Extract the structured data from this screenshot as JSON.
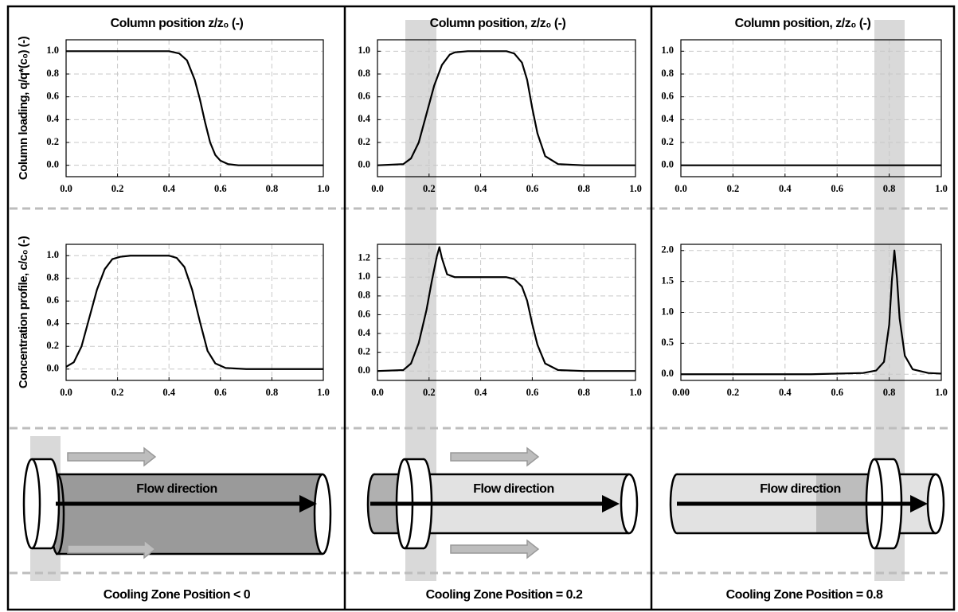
{
  "chart_data": [
    {
      "type": "line",
      "title": "Column position z/z₀ (-)",
      "ylabel": "Column loading, q/q*(c₀) (-)",
      "x": [
        0,
        0.1,
        0.2,
        0.3,
        0.4,
        0.44,
        0.47,
        0.5,
        0.52,
        0.54,
        0.56,
        0.58,
        0.6,
        0.63,
        0.67,
        0.7,
        0.8,
        0.9,
        1.0
      ],
      "series": [
        {
          "color": "#000000",
          "values": [
            1,
            1,
            1,
            1,
            1,
            0.98,
            0.92,
            0.75,
            0.58,
            0.38,
            0.2,
            0.09,
            0.04,
            0.01,
            0,
            0,
            0,
            0,
            0
          ]
        }
      ],
      "xlim": [
        0,
        1
      ],
      "ylim": [
        -0.1,
        1.1
      ],
      "xticks": [
        {
          "value": 0,
          "label": "0.0"
        },
        0.2,
        0.4,
        0.6,
        0.8,
        {
          "value": 1,
          "label": "1.0"
        }
      ],
      "yticks": [
        {
          "value": 0,
          "label": "0.0"
        },
        0.2,
        0.4,
        0.6,
        0.8,
        {
          "value": 1,
          "label": "1.0"
        }
      ],
      "grid": true
    },
    {
      "type": "line",
      "title": "Column position, z/z₀ (-)",
      "x": [
        0,
        0.1,
        0.13,
        0.16,
        0.19,
        0.22,
        0.25,
        0.28,
        0.3,
        0.35,
        0.4,
        0.5,
        0.53,
        0.56,
        0.58,
        0.6,
        0.62,
        0.65,
        0.7,
        0.8,
        0.9,
        1.0
      ],
      "series": [
        {
          "color": "#000000",
          "values": [
            0,
            0.01,
            0.06,
            0.2,
            0.45,
            0.7,
            0.88,
            0.97,
            0.99,
            1,
            1,
            1,
            0.98,
            0.9,
            0.75,
            0.5,
            0.28,
            0.08,
            0.01,
            0,
            0,
            0
          ]
        }
      ],
      "xlim": [
        0,
        1
      ],
      "ylim": [
        -0.1,
        1.1
      ],
      "xticks": [
        {
          "value": 0,
          "label": "0.0"
        },
        0.2,
        0.4,
        0.6,
        0.8,
        {
          "value": 1,
          "label": "1.0"
        }
      ],
      "yticks": [
        {
          "value": 0,
          "label": "0.0"
        },
        0.2,
        0.4,
        0.6,
        0.8,
        {
          "value": 1,
          "label": "1.0"
        }
      ],
      "grid": true
    },
    {
      "type": "line",
      "title": "Column position, z/z₀ (-)",
      "x": [
        0,
        1.0
      ],
      "series": [
        {
          "color": "#000000",
          "values": [
            0,
            0
          ]
        }
      ],
      "xlim": [
        0,
        1
      ],
      "ylim": [
        -0.1,
        1.1
      ],
      "xticks": [
        {
          "value": 0,
          "label": "0.0"
        },
        0.2,
        0.4,
        0.6,
        0.8,
        {
          "value": 1,
          "label": "1.0"
        }
      ],
      "yticks": [
        {
          "value": 0,
          "label": "0.0"
        },
        0.2,
        0.4,
        0.6,
        0.8,
        {
          "value": 1,
          "label": "1.0"
        }
      ],
      "grid": true
    },
    {
      "type": "line",
      "ylabel": "Concentration  profile, c/c₀ (-)",
      "x": [
        0,
        0.03,
        0.06,
        0.09,
        0.12,
        0.15,
        0.18,
        0.21,
        0.25,
        0.3,
        0.4,
        0.43,
        0.46,
        0.49,
        0.52,
        0.55,
        0.58,
        0.62,
        0.7,
        0.8,
        0.9,
        1.0
      ],
      "series": [
        {
          "color": "#000000",
          "values": [
            0.02,
            0.06,
            0.2,
            0.45,
            0.7,
            0.88,
            0.97,
            0.99,
            1,
            1,
            1,
            0.98,
            0.9,
            0.7,
            0.42,
            0.16,
            0.05,
            0.01,
            0,
            0,
            0,
            0
          ]
        }
      ],
      "xlim": [
        0,
        1
      ],
      "ylim": [
        -0.1,
        1.1
      ],
      "xticks": [
        {
          "value": 0,
          "label": "0.0"
        },
        0.2,
        0.4,
        0.6,
        0.8,
        {
          "value": 1,
          "label": "1.0"
        }
      ],
      "yticks": [
        {
          "value": 0,
          "label": "0.0"
        },
        0.2,
        0.4,
        0.6,
        0.8,
        {
          "value": 1,
          "label": "1.0"
        }
      ],
      "grid": true
    },
    {
      "type": "line",
      "x": [
        0,
        0.1,
        0.13,
        0.16,
        0.19,
        0.21,
        0.23,
        0.24,
        0.25,
        0.27,
        0.3,
        0.4,
        0.5,
        0.53,
        0.56,
        0.58,
        0.6,
        0.62,
        0.65,
        0.7,
        0.8,
        0.9,
        1.0
      ],
      "series": [
        {
          "color": "#000000",
          "values": [
            0,
            0.01,
            0.08,
            0.3,
            0.65,
            0.95,
            1.22,
            1.32,
            1.2,
            1.03,
            1.0,
            1,
            1,
            0.98,
            0.9,
            0.75,
            0.5,
            0.28,
            0.08,
            0.01,
            0,
            0,
            0
          ]
        }
      ],
      "xlim": [
        0,
        1
      ],
      "ylim": [
        -0.1,
        1.35
      ],
      "xticks": [
        {
          "value": 0,
          "label": "0.0"
        },
        0.2,
        0.4,
        0.6,
        0.8,
        {
          "value": 1,
          "label": "1.0"
        }
      ],
      "yticks": [
        {
          "value": 0,
          "label": "0.0"
        },
        0.2,
        0.4,
        0.6,
        0.8,
        {
          "value": 1,
          "label": "1.0"
        },
        1.2
      ],
      "grid": true
    },
    {
      "type": "line",
      "x": [
        0,
        0.5,
        0.7,
        0.75,
        0.78,
        0.8,
        0.81,
        0.82,
        0.83,
        0.84,
        0.86,
        0.89,
        0.95,
        1.0
      ],
      "series": [
        {
          "color": "#000000",
          "values": [
            0,
            0,
            0.02,
            0.06,
            0.2,
            0.8,
            1.5,
            2.0,
            1.55,
            0.9,
            0.3,
            0.08,
            0.02,
            0.01
          ]
        }
      ],
      "xlim": [
        0,
        1
      ],
      "ylim": [
        -0.1,
        2.1
      ],
      "xticks": [
        {
          "value": 0,
          "label": "0.00"
        },
        0.2,
        0.4,
        0.6,
        0.8,
        {
          "value": 1,
          "label": "1.0"
        }
      ],
      "yticks": [
        {
          "value": 0,
          "label": "0.0"
        },
        0.5,
        {
          "value": 1,
          "label": "1.0"
        },
        1.5,
        {
          "value": 2,
          "label": "2.0"
        }
      ],
      "grid": true
    }
  ],
  "diagrams": [
    {
      "label": "Flow direction",
      "caption": "Cooling Zone Position < 0"
    },
    {
      "label": "Flow direction",
      "caption": "Cooling Zone Position = 0.2"
    },
    {
      "label": "Flow direction",
      "caption": "Cooling Zone Position = 0.8"
    }
  ]
}
